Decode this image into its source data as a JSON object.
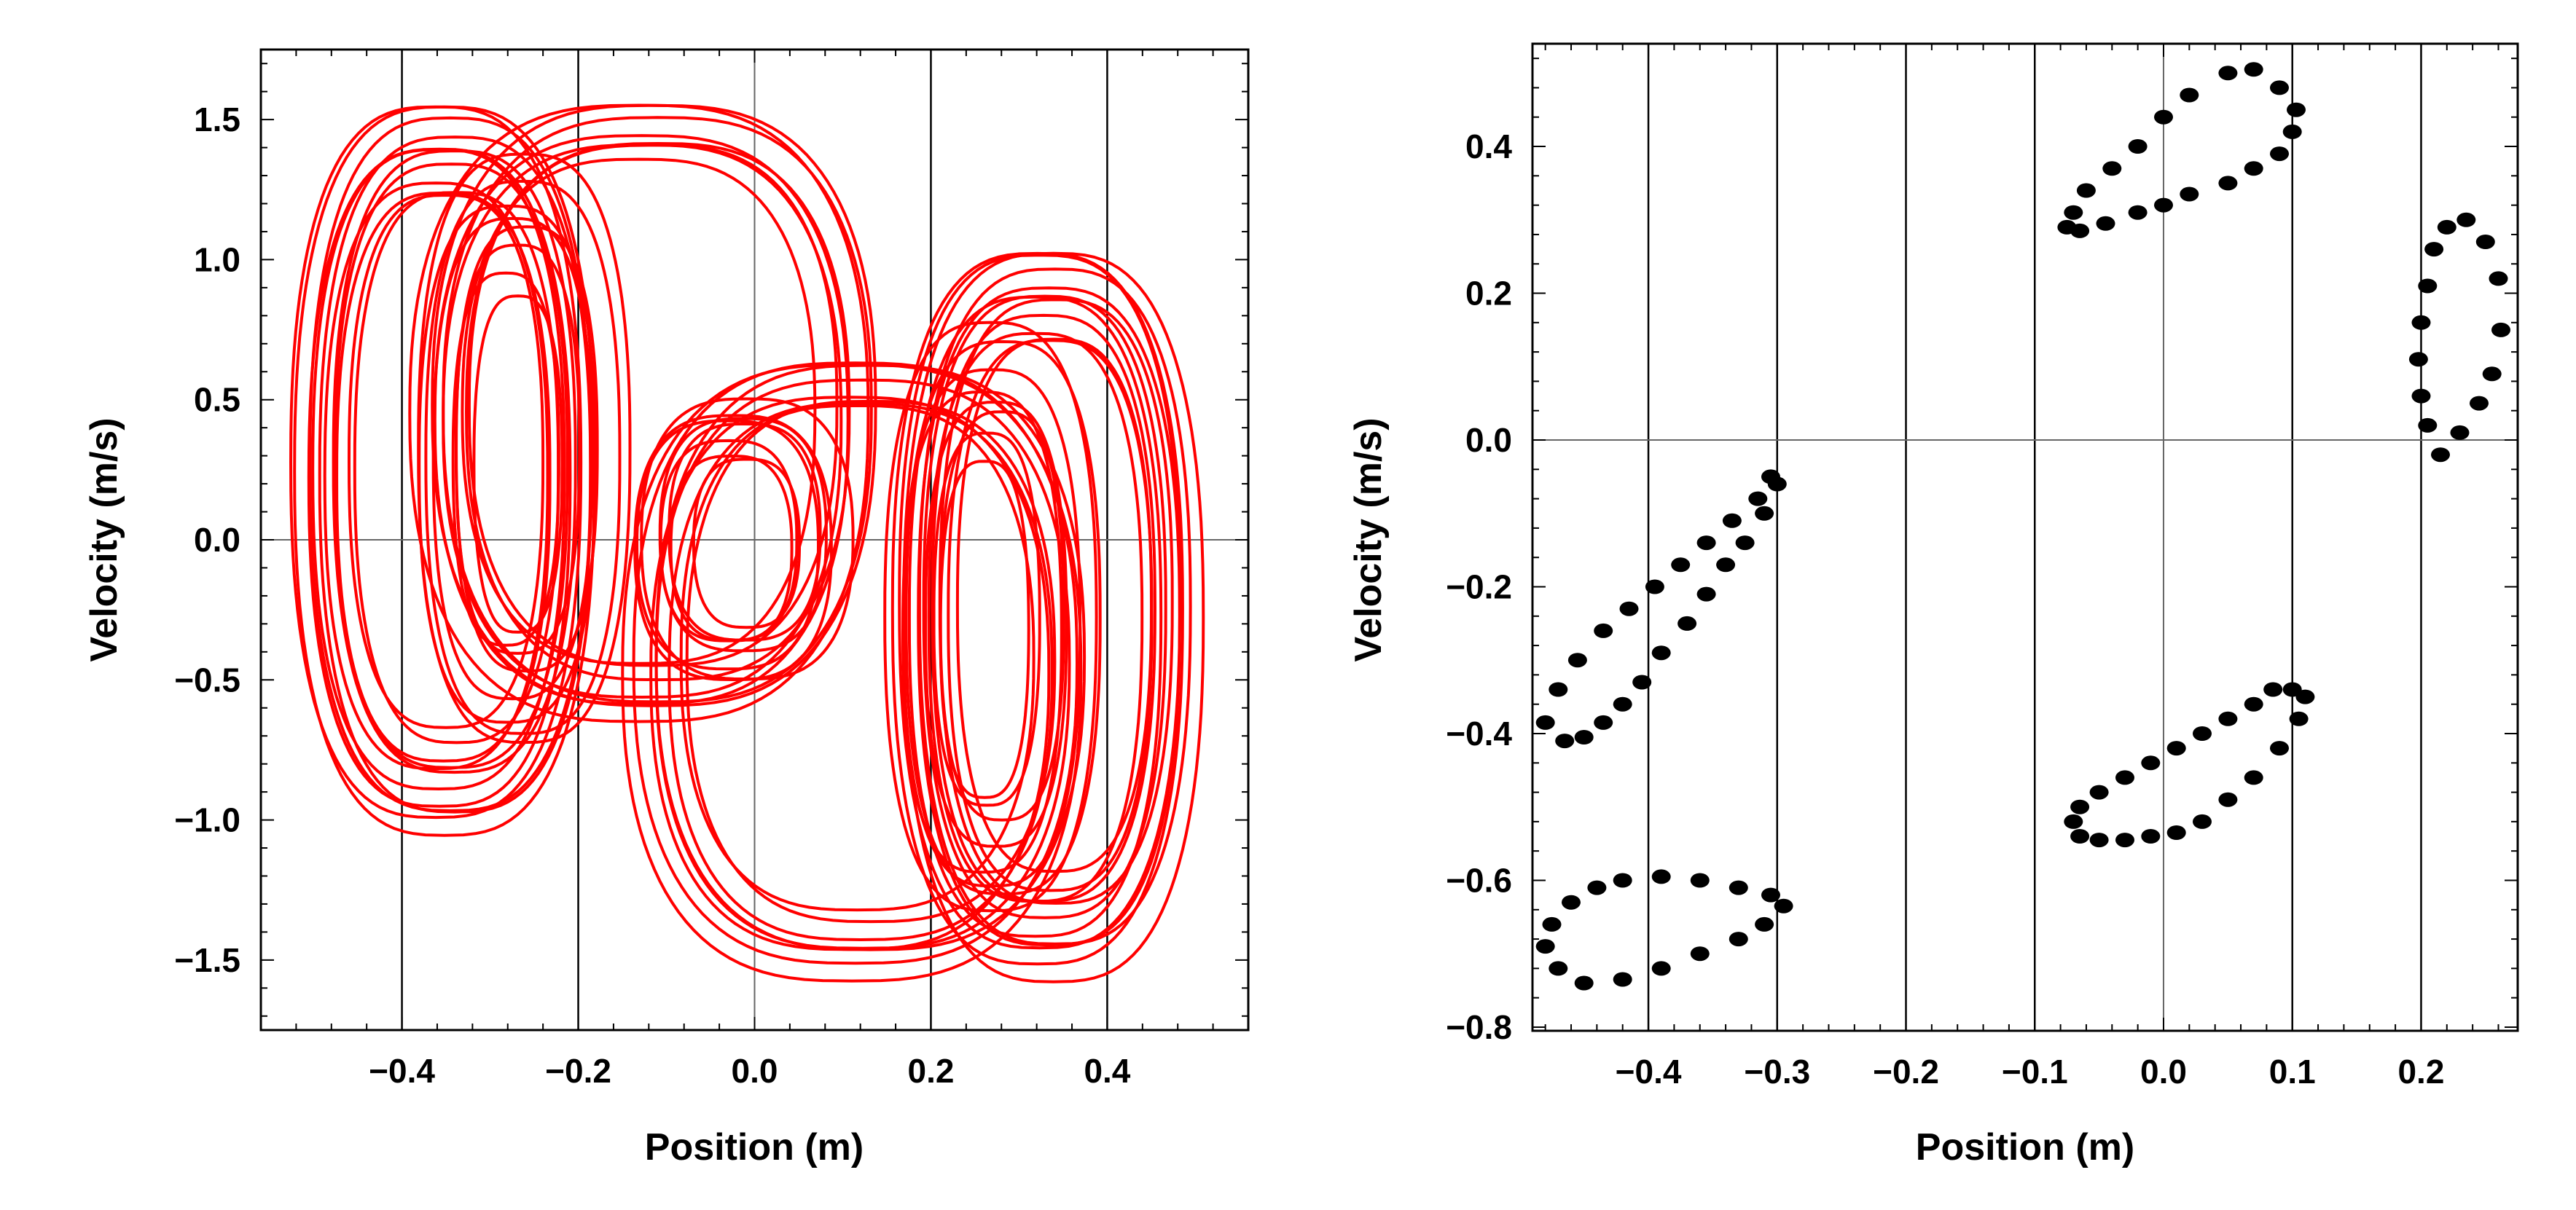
{
  "chart_data": [
    {
      "type": "line",
      "title": "",
      "xlabel": "Position (m)",
      "ylabel": "Velocity (m/s)",
      "xlim": [
        -0.56,
        0.56
      ],
      "ylim": [
        -1.75,
        1.75
      ],
      "x_ticks": [
        "−0.4",
        "−0.2",
        "0.0",
        "0.2",
        "0.4"
      ],
      "x_tick_values": [
        -0.4,
        -0.2,
        0.0,
        0.2,
        0.4
      ],
      "y_ticks": [
        "1.5",
        "1.0",
        "0.5",
        "0.0",
        "−0.5",
        "−1.0",
        "−1.5"
      ],
      "y_tick_values": [
        1.5,
        1.0,
        0.5,
        0.0,
        -0.5,
        -1.0,
        -1.5
      ],
      "grid_x": [
        -0.4,
        -0.2,
        0.0,
        0.2,
        0.4
      ],
      "grid_y": [
        0.0
      ],
      "line_color": "#ff0000",
      "series": [
        {
          "loops": [
            {
              "cx": -0.35,
              "cy": 0.25,
              "rx_min": 0.11,
              "rx_max": 0.17,
              "ry_min": 0.95,
              "ry_max": 1.3,
              "count": 12
            },
            {
              "cx": 0.33,
              "cy": -0.25,
              "rx_min": 0.11,
              "rx_max": 0.17,
              "ry_min": 0.95,
              "ry_max": 1.3,
              "count": 12
            },
            {
              "cx": -0.02,
              "cy": 0.0,
              "rx_min": 0.06,
              "rx_max": 0.12,
              "ry_min": 0.3,
              "ry_max": 0.5,
              "count": 8
            },
            {
              "cx": -0.27,
              "cy": 0.3,
              "rx_min": 0.05,
              "rx_max": 0.12,
              "ry_min": 0.6,
              "ry_max": 1.05,
              "count": 8
            },
            {
              "cx": 0.27,
              "cy": -0.3,
              "rx_min": 0.05,
              "rx_max": 0.12,
              "ry_min": 0.6,
              "ry_max": 1.05,
              "count": 8
            },
            {
              "cx": -0.12,
              "cy": 0.45,
              "rx_min": 0.2,
              "rx_max": 0.26,
              "ry_min": 0.9,
              "ry_max": 1.1,
              "count": 8
            },
            {
              "cx": 0.12,
              "cy": -0.45,
              "rx_min": 0.2,
              "rx_max": 0.26,
              "ry_min": 0.9,
              "ry_max": 1.1,
              "count": 8
            }
          ]
        }
      ]
    },
    {
      "type": "scatter",
      "title": "",
      "xlabel": "Position (m)",
      "ylabel": "Velocity (m/s)",
      "xlim": [
        -0.49,
        0.275
      ],
      "ylim": [
        -0.805,
        0.54
      ],
      "x_ticks": [
        "−0.4",
        "−0.3",
        "−0.2",
        "−0.1",
        "0.0",
        "0.1",
        "0.2"
      ],
      "x_tick_values": [
        -0.4,
        -0.3,
        -0.2,
        -0.1,
        0.0,
        0.1,
        0.2
      ],
      "y_ticks": [
        "0.4",
        "0.2",
        "0.0",
        "−0.2",
        "−0.4",
        "−0.6",
        "−0.8"
      ],
      "y_tick_values": [
        0.4,
        0.2,
        0.0,
        -0.2,
        -0.4,
        -0.6,
        -0.8
      ],
      "grid_x": [
        -0.4,
        -0.3,
        -0.2,
        -0.1,
        0.0,
        0.1,
        0.2
      ],
      "grid_y": [
        0.0
      ],
      "point_color": "#000000",
      "points": [
        [
          -0.075,
          0.29
        ],
        [
          -0.07,
          0.31
        ],
        [
          -0.06,
          0.34
        ],
        [
          -0.04,
          0.37
        ],
        [
          -0.02,
          0.4
        ],
        [
          0.0,
          0.44
        ],
        [
          0.02,
          0.47
        ],
        [
          0.05,
          0.5
        ],
        [
          0.07,
          0.505
        ],
        [
          0.09,
          0.48
        ],
        [
          0.103,
          0.45
        ],
        [
          0.1,
          0.42
        ],
        [
          0.09,
          0.39
        ],
        [
          0.07,
          0.37
        ],
        [
          0.05,
          0.35
        ],
        [
          0.02,
          0.335
        ],
        [
          0.0,
          0.32
        ],
        [
          -0.02,
          0.31
        ],
        [
          -0.045,
          0.295
        ],
        [
          -0.065,
          0.285
        ],
        [
          0.205,
          0.02
        ],
        [
          0.2,
          0.06
        ],
        [
          0.198,
          0.11
        ],
        [
          0.2,
          0.16
        ],
        [
          0.205,
          0.21
        ],
        [
          0.21,
          0.26
        ],
        [
          0.22,
          0.29
        ],
        [
          0.235,
          0.3
        ],
        [
          0.25,
          0.27
        ],
        [
          0.26,
          0.22
        ],
        [
          0.262,
          0.15
        ],
        [
          0.255,
          0.09
        ],
        [
          0.245,
          0.05
        ],
        [
          0.23,
          0.01
        ],
        [
          0.215,
          -0.02
        ],
        [
          -0.48,
          -0.385
        ],
        [
          -0.465,
          -0.41
        ],
        [
          -0.45,
          -0.405
        ],
        [
          -0.435,
          -0.385
        ],
        [
          -0.42,
          -0.36
        ],
        [
          -0.405,
          -0.33
        ],
        [
          -0.39,
          -0.29
        ],
        [
          -0.37,
          -0.25
        ],
        [
          -0.355,
          -0.21
        ],
        [
          -0.34,
          -0.17
        ],
        [
          -0.325,
          -0.14
        ],
        [
          -0.31,
          -0.1
        ],
        [
          -0.3,
          -0.06
        ],
        [
          -0.305,
          -0.05
        ],
        [
          -0.315,
          -0.08
        ],
        [
          -0.335,
          -0.11
        ],
        [
          -0.355,
          -0.14
        ],
        [
          -0.375,
          -0.17
        ],
        [
          -0.395,
          -0.2
        ],
        [
          -0.415,
          -0.23
        ],
        [
          -0.435,
          -0.26
        ],
        [
          -0.455,
          -0.3
        ],
        [
          -0.47,
          -0.34
        ],
        [
          -0.48,
          -0.69
        ],
        [
          -0.475,
          -0.66
        ],
        [
          -0.46,
          -0.63
        ],
        [
          -0.44,
          -0.61
        ],
        [
          -0.42,
          -0.6
        ],
        [
          -0.39,
          -0.595
        ],
        [
          -0.36,
          -0.6
        ],
        [
          -0.33,
          -0.61
        ],
        [
          -0.305,
          -0.62
        ],
        [
          -0.295,
          -0.635
        ],
        [
          -0.31,
          -0.66
        ],
        [
          -0.33,
          -0.68
        ],
        [
          -0.36,
          -0.7
        ],
        [
          -0.39,
          -0.72
        ],
        [
          -0.42,
          -0.735
        ],
        [
          -0.45,
          -0.74
        ],
        [
          -0.47,
          -0.72
        ],
        [
          -0.07,
          -0.52
        ],
        [
          -0.065,
          -0.54
        ],
        [
          -0.05,
          -0.545
        ],
        [
          -0.03,
          -0.545
        ],
        [
          -0.01,
          -0.54
        ],
        [
          0.01,
          -0.535
        ],
        [
          0.03,
          -0.52
        ],
        [
          0.05,
          -0.49
        ],
        [
          0.07,
          -0.46
        ],
        [
          0.09,
          -0.42
        ],
        [
          0.105,
          -0.38
        ],
        [
          0.11,
          -0.35
        ],
        [
          0.1,
          -0.34
        ],
        [
          0.085,
          -0.34
        ],
        [
          0.07,
          -0.36
        ],
        [
          0.05,
          -0.38
        ],
        [
          0.03,
          -0.4
        ],
        [
          0.01,
          -0.42
        ],
        [
          -0.01,
          -0.44
        ],
        [
          -0.03,
          -0.46
        ],
        [
          -0.05,
          -0.48
        ],
        [
          -0.065,
          -0.5
        ]
      ]
    }
  ]
}
